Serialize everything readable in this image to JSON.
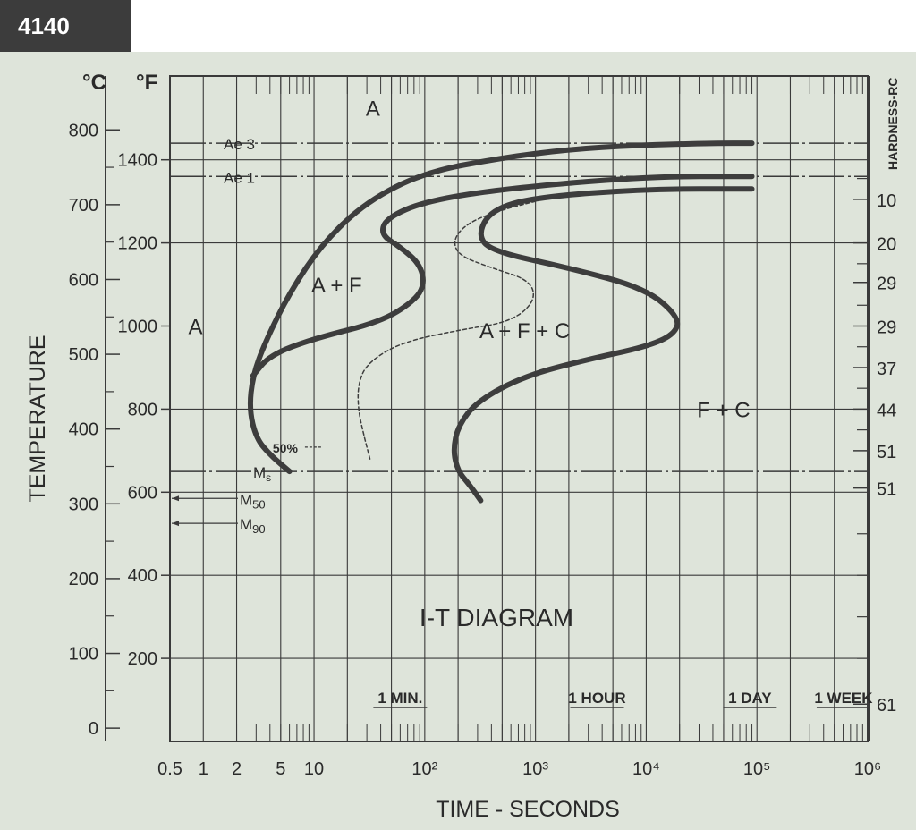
{
  "steel_grade": "4140",
  "chart_data": {
    "type": "line",
    "title": "I-T DIAGRAM",
    "xlabel": "TIME - SECONDS",
    "ylabel": "TEMPERATURE",
    "x_scale": "log",
    "xlim": [
      0.5,
      1000000
    ],
    "ylim_fahrenheit": [
      0,
      1600
    ],
    "x_ticks": [
      {
        "label": "0.5",
        "value": 0.5
      },
      {
        "label": "1",
        "value": 1
      },
      {
        "label": "2",
        "value": 2
      },
      {
        "label": "5",
        "value": 5
      },
      {
        "label": "10",
        "value": 10
      },
      {
        "label": "10²",
        "value": 100
      },
      {
        "label": "10³",
        "value": 1000
      },
      {
        "label": "10⁴",
        "value": 10000
      },
      {
        "label": "10⁵",
        "value": 100000
      },
      {
        "label": "10⁶",
        "value": 1000000
      }
    ],
    "time_markers": [
      {
        "label": "1 MIN.",
        "value": 60
      },
      {
        "label": "1 HOUR",
        "value": 3600
      },
      {
        "label": "1 DAY",
        "value": 86400
      },
      {
        "label": "1 WEEK",
        "value": 604800
      }
    ],
    "fahrenheit_axis": {
      "unit": "°F",
      "ticks": [
        200,
        400,
        600,
        800,
        1000,
        1200,
        1400
      ]
    },
    "celsius_axis": {
      "unit": "°C",
      "ticks": [
        0,
        100,
        200,
        300,
        400,
        500,
        600,
        700,
        800
      ]
    },
    "hardness_axis": {
      "label": "HARDNESS-RC",
      "values": [
        {
          "text": "10",
          "temp_f": 1305
        },
        {
          "text": "20",
          "temp_f": 1200
        },
        {
          "text": "29",
          "temp_f": 1105
        },
        {
          "text": "29",
          "temp_f": 1000
        },
        {
          "text": "37",
          "temp_f": 900
        },
        {
          "text": "44",
          "temp_f": 800
        },
        {
          "text": "51",
          "temp_f": 700
        },
        {
          "text": "51",
          "temp_f": 610
        },
        {
          "text": "61",
          "temp_f": 90
        }
      ]
    },
    "reference_lines": [
      {
        "label": "Ae 3",
        "temp_f": 1440
      },
      {
        "label": "Ae 1",
        "temp_f": 1360
      },
      {
        "label": "Ms",
        "temp_f": 650
      }
    ],
    "arrow_labels": [
      {
        "label": "M50",
        "temp_f": 585
      },
      {
        "label": "M90",
        "temp_f": 525
      }
    ],
    "region_labels": [
      {
        "text": "A",
        "time": 34,
        "temp_f": 1525
      },
      {
        "text": "A",
        "time": 0.85,
        "temp_f": 1000
      },
      {
        "text": "A + F",
        "time": 16,
        "temp_f": 1100
      },
      {
        "text": "A + F + C",
        "time": 800,
        "temp_f": 990
      },
      {
        "text": "F + C",
        "time": 50000,
        "temp_f": 800
      },
      {
        "text": "50%",
        "time": 5.5,
        "temp_f": 715
      }
    ],
    "series": [
      {
        "name": "",
        "x": [
          90000,
          40000,
          8000,
          2000,
          500,
          100,
          30,
          12,
          6,
          3.6,
          2.8,
          2.6,
          3,
          4,
          6
        ],
        "y": [
          1440,
          1440,
          1435,
          1425,
          1405,
          1370,
          1300,
          1200,
          1080,
          960,
          880,
          800,
          730,
          690,
          650
        ]
      },
      {
        "name": "",
        "x": [
          2.8,
          4,
          10,
          40,
          80,
          100,
          90,
          60,
          40,
          45,
          100,
          500,
          10000,
          90000
        ],
        "y": [
          880,
          930,
          970,
          1010,
          1060,
          1100,
          1150,
          1190,
          1220,
          1260,
          1300,
          1330,
          1360,
          1360
        ]
      },
      {
        "name": "",
        "x": [
          90000,
          10000,
          1000,
          400,
          300,
          400,
          2000,
          10000,
          20000,
          18000,
          10000,
          3000,
          800,
          300,
          200,
          180,
          200,
          250,
          320
        ],
        "y": [
          1330,
          1330,
          1310,
          1280,
          1220,
          1180,
          1140,
          1090,
          1020,
          980,
          950,
          920,
          880,
          820,
          760,
          700,
          650,
          620,
          580
        ]
      },
      {
        "name": "50%",
        "dashed": true,
        "x": [
          1000,
          500,
          250,
          180,
          200,
          400,
          900,
          1000,
          600,
          200,
          60,
          30,
          25,
          25,
          28,
          32
        ],
        "y": [
          1300,
          1280,
          1250,
          1210,
          1170,
          1140,
          1110,
          1060,
          1010,
          990,
          960,
          910,
          860,
          800,
          740,
          680
        ]
      }
    ]
  }
}
